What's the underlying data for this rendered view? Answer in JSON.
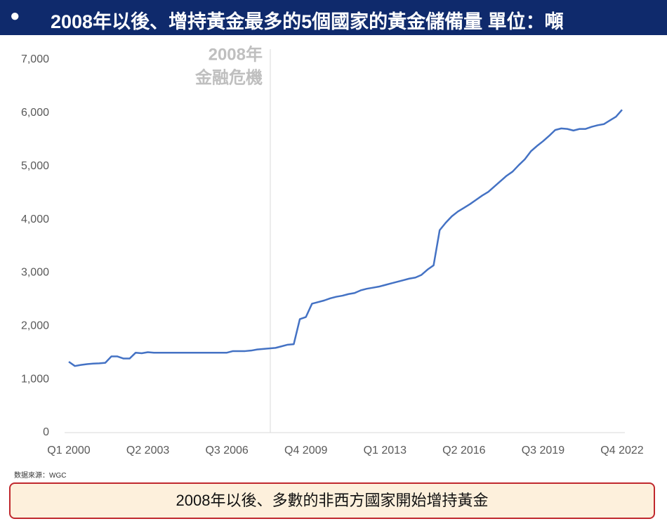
{
  "chart_data": {
    "type": "line",
    "title": "2008年以後、增持黃金最多的5個國家的黃金儲備量 單位：噸",
    "annotation": [
      "2008年",
      "金融危機"
    ],
    "source": "数据來源：WGC",
    "note": "2008年以後、多數的非西方國家開始增持黃金",
    "color": "#4472c4",
    "categories": [
      "Q1 2000",
      null,
      null,
      null,
      null,
      null,
      null,
      null,
      null,
      null,
      null,
      null,
      null,
      "Q2 2003",
      null,
      null,
      null,
      null,
      null,
      null,
      null,
      null,
      null,
      null,
      null,
      null,
      "Q3 2006",
      null,
      null,
      null,
      null,
      null,
      null,
      null,
      null,
      null,
      null,
      null,
      null,
      "Q4 2009",
      null,
      null,
      null,
      null,
      null,
      null,
      null,
      null,
      null,
      null,
      null,
      null,
      "Q1 2013",
      null,
      null,
      null,
      null,
      null,
      null,
      null,
      null,
      null,
      null,
      null,
      null,
      "Q2 2016",
      null,
      null,
      null,
      null,
      null,
      null,
      null,
      null,
      null,
      null,
      null,
      null,
      "Q3 2019",
      null,
      null,
      null,
      null,
      null,
      null,
      null,
      null,
      null,
      null,
      null,
      null,
      "Q4 2022"
    ],
    "values": [
      1330,
      1250,
      1270,
      1285,
      1295,
      1300,
      1310,
      1430,
      1430,
      1390,
      1390,
      1500,
      1490,
      1510,
      1500,
      1500,
      1500,
      1500,
      1500,
      1500,
      1500,
      1500,
      1500,
      1500,
      1500,
      1500,
      1500,
      1530,
      1530,
      1530,
      1540,
      1560,
      1570,
      1580,
      1590,
      1620,
      1650,
      1660,
      2130,
      2170,
      2420,
      2450,
      2480,
      2520,
      2550,
      2570,
      2600,
      2620,
      2670,
      2700,
      2720,
      2740,
      2770,
      2800,
      2830,
      2860,
      2890,
      2910,
      2960,
      3060,
      3140,
      3800,
      3940,
      4060,
      4150,
      4220,
      4290,
      4370,
      4450,
      4520,
      4620,
      4720,
      4820,
      4900,
      5020,
      5130,
      5280,
      5380,
      5470,
      5570,
      5680,
      5710,
      5700,
      5670,
      5700,
      5700,
      5740,
      5770,
      5790,
      5860,
      5930,
      6060
    ],
    "ylim": [
      0,
      7000
    ],
    "yticks": [
      0,
      {
        "value": 1000,
        "label": "1,000"
      },
      {
        "value": 2000,
        "label": "2,000"
      },
      {
        "value": 3000,
        "label": "3,000"
      },
      {
        "value": 4000,
        "label": "4,000"
      },
      {
        "value": 5000,
        "label": "5,000"
      },
      {
        "value": 6000,
        "label": "6,000"
      },
      {
        "value": 7000,
        "label": "7,000"
      }
    ],
    "grid": false
  }
}
